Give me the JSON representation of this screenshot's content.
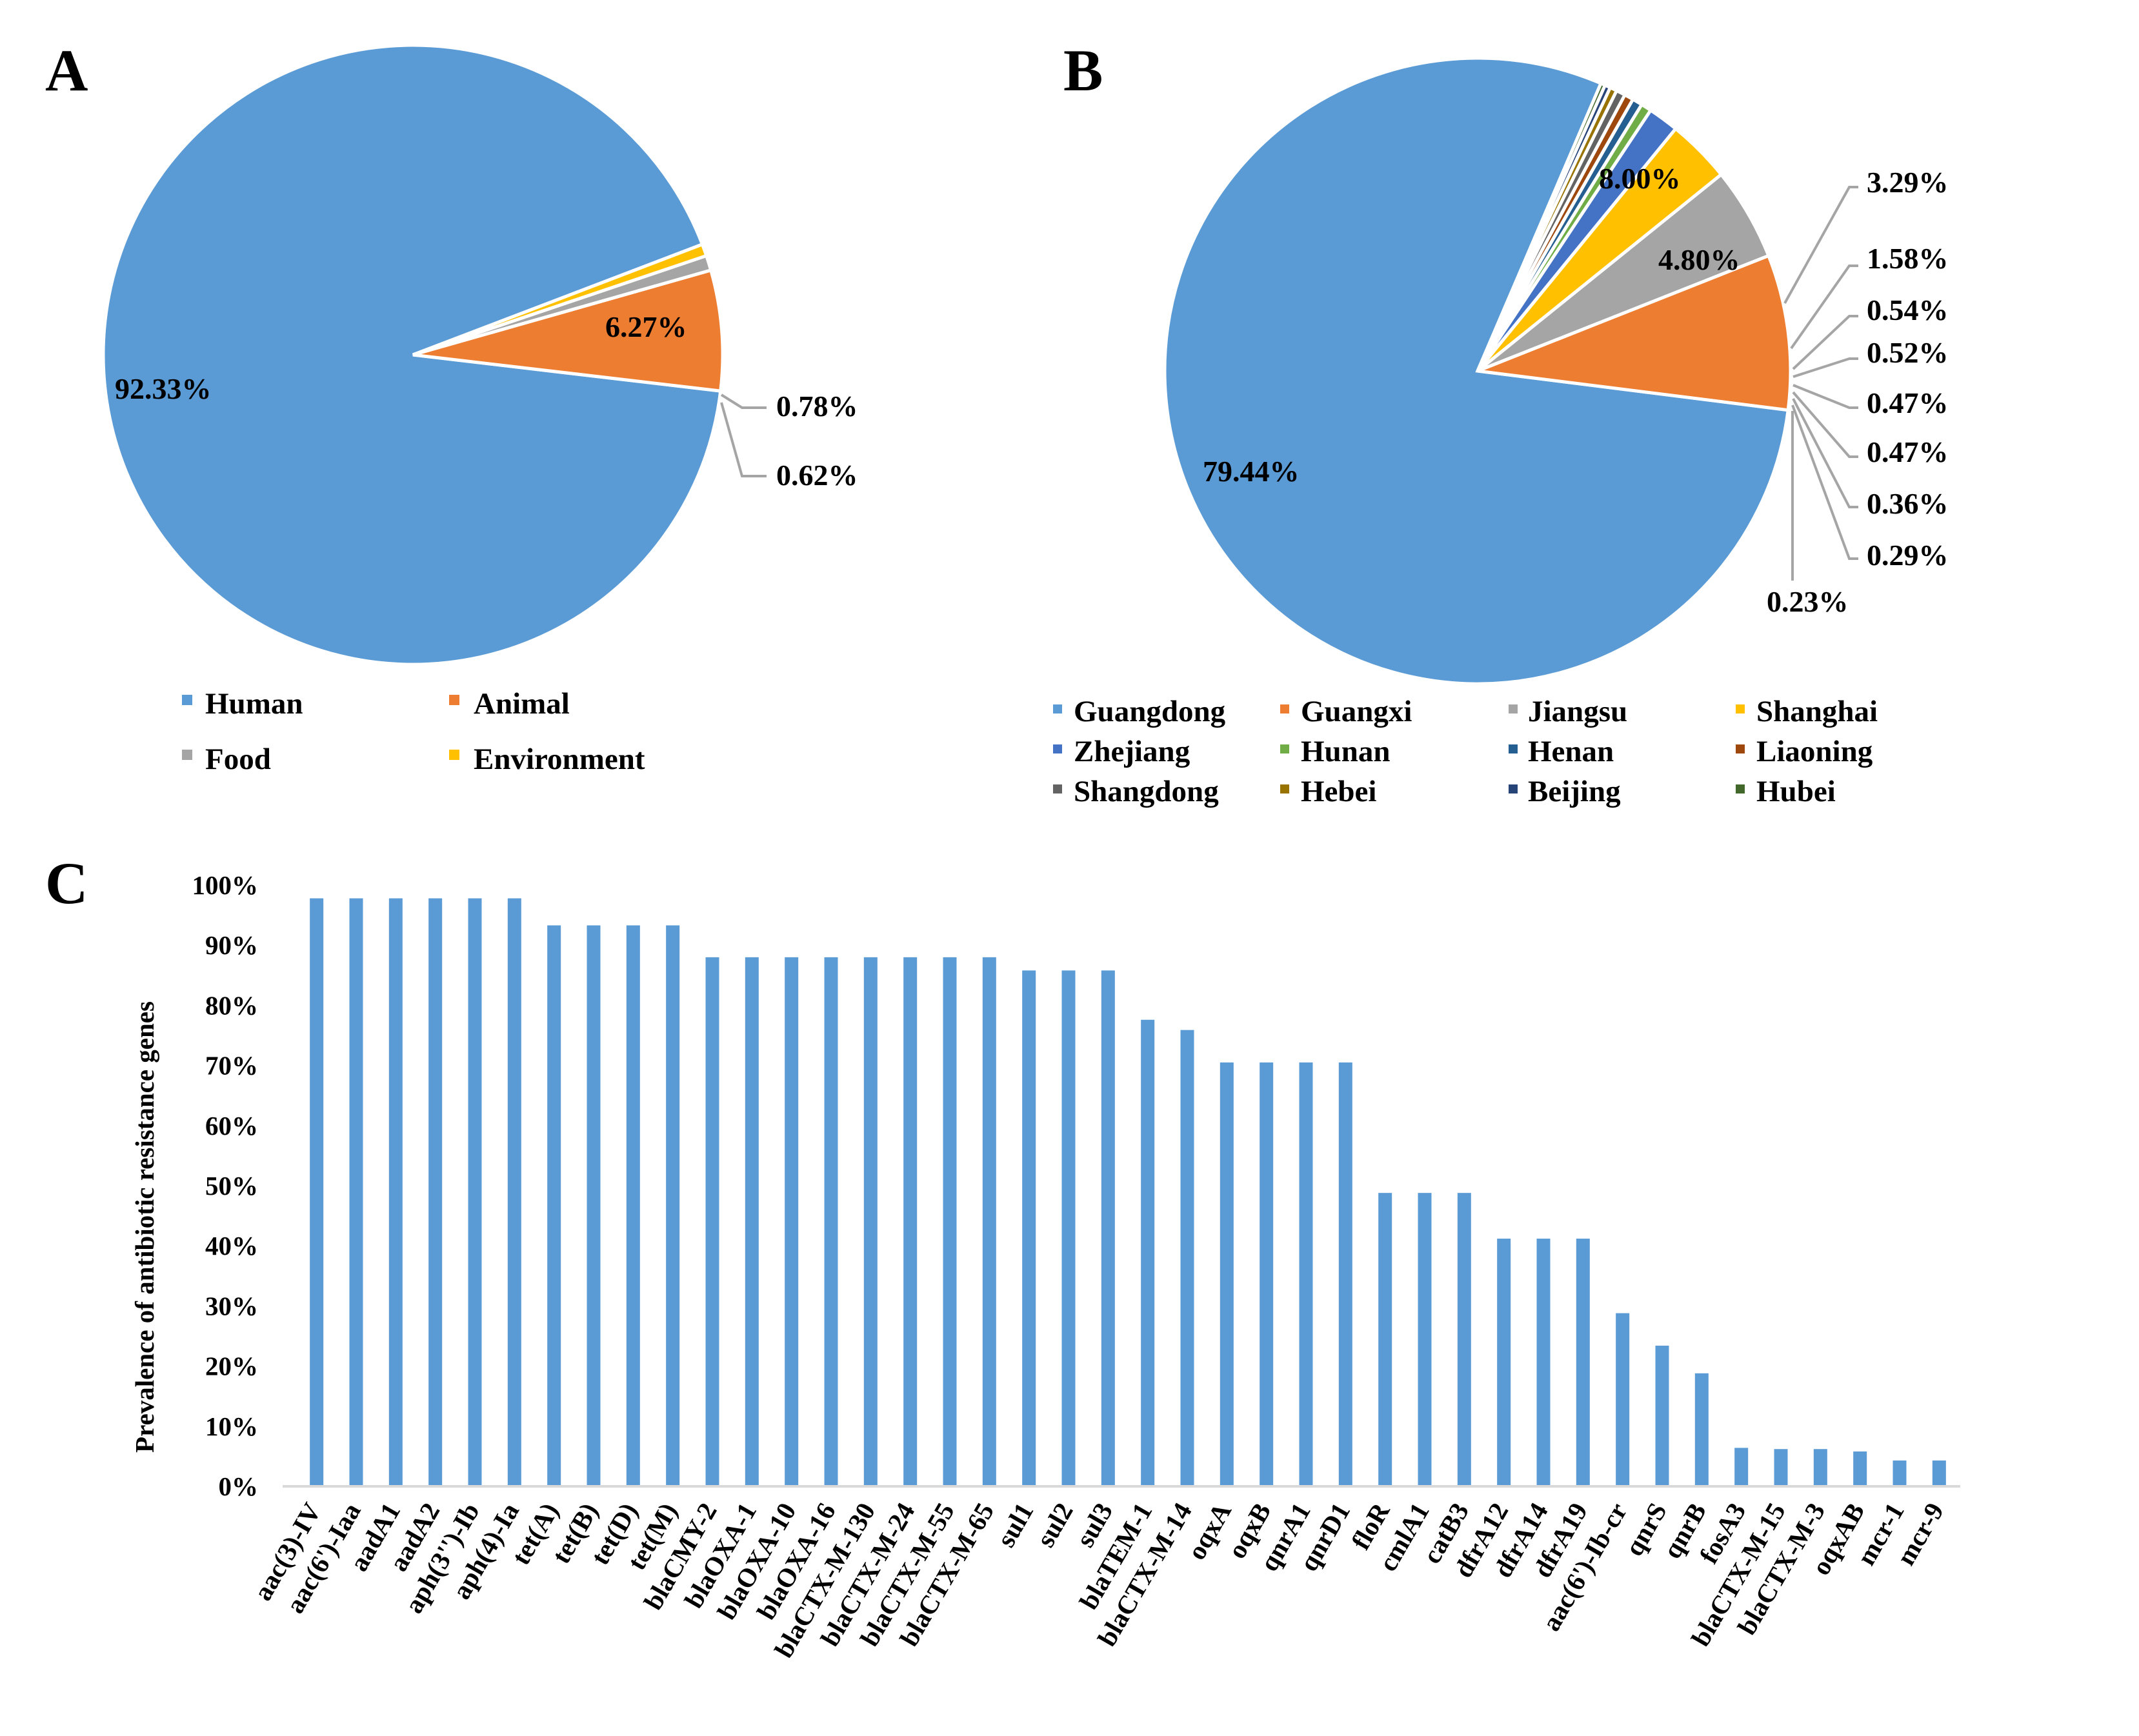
{
  "chart_data": [
    {
      "panel": "A",
      "type": "pie",
      "colors": [
        "#5B9BD5",
        "#ED7D31",
        "#A5A5A5",
        "#FFC000"
      ],
      "slices": [
        {
          "name": "Human",
          "value": 92.33,
          "label": "92.33%"
        },
        {
          "name": "Animal",
          "value": 6.27,
          "label": "6.27%"
        },
        {
          "name": "Food",
          "value": 0.78,
          "label": "0.78%"
        },
        {
          "name": "Environment",
          "value": 0.62,
          "label": "0.62%"
        }
      ],
      "legend": [
        "Human",
        "Animal",
        "Food",
        "Environment"
      ]
    },
    {
      "panel": "B",
      "type": "pie",
      "slices": [
        {
          "name": "Guangdong",
          "value": 79.44,
          "label": "79.44%",
          "color": "#5B9BD5"
        },
        {
          "name": "Guangxi",
          "value": 8.0,
          "label": "8.00%",
          "color": "#ED7D31"
        },
        {
          "name": "Jiangsu",
          "value": 4.8,
          "label": "4.80%",
          "color": "#A5A5A5"
        },
        {
          "name": "Shanghai",
          "value": 3.29,
          "label": "3.29%",
          "color": "#FFC000"
        },
        {
          "name": "Zhejiang",
          "value": 1.58,
          "label": "1.58%",
          "color": "#4472C4"
        },
        {
          "name": "Hunan",
          "value": 0.54,
          "label": "0.54%",
          "color": "#70AD47"
        },
        {
          "name": "Henan",
          "value": 0.52,
          "label": "0.52%",
          "color": "#255E91"
        },
        {
          "name": "Liaoning",
          "value": 0.47,
          "label": "0.47%",
          "color": "#9E480E"
        },
        {
          "name": "Shangdong",
          "value": 0.47,
          "label": "0.47%",
          "color": "#636363"
        },
        {
          "name": "Hebei",
          "value": 0.36,
          "label": "0.36%",
          "color": "#997300"
        },
        {
          "name": "Beijing",
          "value": 0.29,
          "label": "0.29%",
          "color": "#264478"
        },
        {
          "name": "Hubei",
          "value": 0.23,
          "label": "0.23%",
          "color": "#43682B"
        }
      ],
      "legend": [
        "Guangdong",
        "Guangxi",
        "Jiangsu",
        "Shanghai",
        "Zhejiang",
        "Hunan",
        "Henan",
        "Liaoning",
        "Shangdong",
        "Hebei",
        "Beijing",
        "Hubei"
      ]
    },
    {
      "panel": "C",
      "type": "bar",
      "ylabel": "Prevalence of antibiotic resistance genes",
      "ylim": [
        0,
        100
      ],
      "yticks": [
        "0%",
        "10%",
        "20%",
        "30%",
        "40%",
        "50%",
        "60%",
        "70%",
        "80%",
        "90%",
        "100%"
      ],
      "bar_color": "#5B9BD5",
      "categories": [
        "aac(3)-IV",
        "aac(6')-Iaa",
        "aadA1",
        "aadA2",
        "aph(3'')-Ib",
        "aph(4)-Ia",
        "tet(A)",
        "tet(B)",
        "tet(D)",
        "tet(M)",
        "blaCMY-2",
        "blaOXA-1",
        "blaOXA-10",
        "blaOXA-16",
        "blaCTX-M-130",
        "blaCTX-M-24",
        "blaCTX-M-55",
        "blaCTX-M-65",
        "sul1",
        "sul2",
        "sul3",
        "blaTEM-1",
        "blaCTX-M-14",
        "oqxA",
        "oqxB",
        "qnrA1",
        "qnrD1",
        "floR",
        "cmlA1",
        "catB3",
        "dfrA12",
        "dfrA14",
        "dfrA19",
        "aac(6')-Ib-cr",
        "qnrS",
        "qnrB",
        "fosA3",
        "blaCTX-M-15",
        "blaCTX-M-3",
        "oqxAB",
        "mcr-1",
        "mcr-9"
      ],
      "values": [
        97.8,
        97.8,
        97.8,
        97.8,
        97.8,
        97.8,
        93.3,
        93.3,
        93.3,
        93.3,
        88.0,
        88.0,
        88.0,
        88.0,
        88.0,
        88.0,
        88.0,
        88.0,
        85.8,
        85.8,
        85.8,
        77.6,
        75.9,
        70.5,
        70.5,
        70.5,
        70.5,
        48.8,
        48.8,
        48.8,
        41.2,
        41.2,
        41.2,
        28.8,
        23.4,
        18.8,
        6.4,
        6.2,
        6.2,
        5.8,
        4.3,
        4.3
      ]
    }
  ],
  "panels": {
    "a": "A",
    "b": "B",
    "c": "C"
  }
}
